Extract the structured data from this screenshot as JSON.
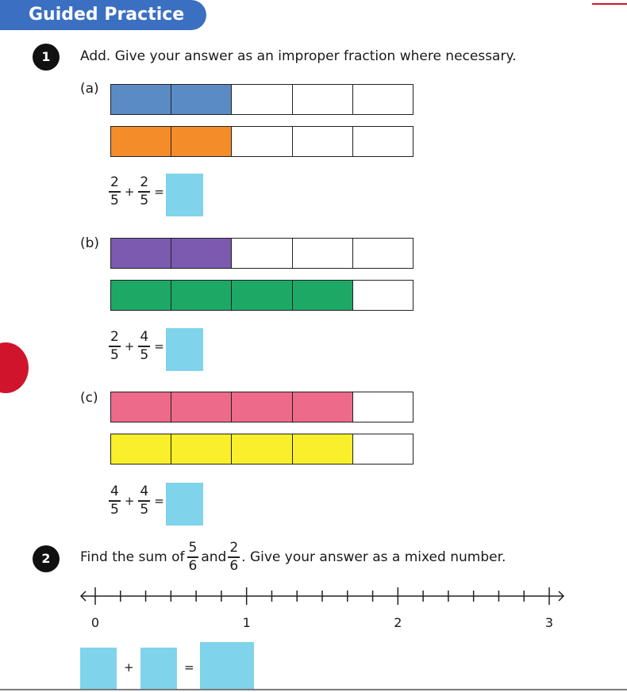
{
  "header": {
    "title": "Guided Practice"
  },
  "q1": {
    "number": "1",
    "text": "Add. Give your answer as an improper fraction where necessary.",
    "parts": [
      {
        "label": "(a)",
        "bars": [
          {
            "color": "#5b8bc4",
            "filled": 2,
            "total": 5
          },
          {
            "color": "#f58c2a",
            "filled": 2,
            "total": 5
          }
        ],
        "equation": {
          "a_num": "2",
          "a_den": "5",
          "op": "+",
          "b_num": "2",
          "b_den": "5",
          "eq": "="
        }
      },
      {
        "label": "(b)",
        "bars": [
          {
            "color": "#7b5ab0",
            "filled": 2,
            "total": 5
          },
          {
            "color": "#1ea866",
            "filled": 4,
            "total": 5
          }
        ],
        "equation": {
          "a_num": "2",
          "a_den": "5",
          "op": "+",
          "b_num": "4",
          "b_den": "5",
          "eq": "="
        }
      },
      {
        "label": "(c)",
        "bars": [
          {
            "color": "#ee6a8a",
            "filled": 4,
            "total": 5
          },
          {
            "color": "#f9ef2a",
            "filled": 4,
            "total": 5
          }
        ],
        "equation": {
          "a_num": "4",
          "a_den": "5",
          "op": "+",
          "b_num": "4",
          "b_den": "5",
          "eq": "="
        }
      }
    ]
  },
  "q2": {
    "number": "2",
    "text_before": "Find the sum of",
    "frac1": {
      "num": "5",
      "den": "6"
    },
    "text_mid": "and",
    "frac2": {
      "num": "2",
      "den": "6"
    },
    "text_after": ". Give your answer as a mixed number.",
    "number_line": {
      "labels": [
        "0",
        "1",
        "2",
        "3"
      ],
      "min": 0,
      "max": 3,
      "subdivisions": 6
    },
    "answer_ops": {
      "plus": "+",
      "equals": "="
    }
  },
  "colors": {
    "answer_box": "#7fd3ea",
    "header_bg": "#3b6fc1"
  }
}
